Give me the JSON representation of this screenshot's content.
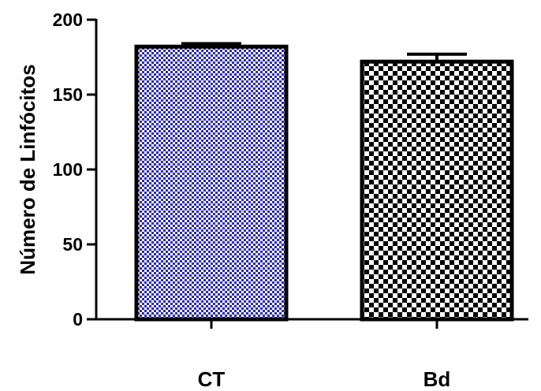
{
  "chart_data": {
    "type": "bar",
    "title": "",
    "xlabel": "",
    "ylabel": "Número de Linfócitos",
    "categories": [
      "CT",
      "Bd"
    ],
    "values": [
      182,
      172
    ],
    "errors": [
      2,
      5
    ],
    "ylim": [
      0,
      200
    ],
    "yticks": [
      0,
      50,
      100,
      150,
      200
    ],
    "yticklabels": [
      "0",
      "50",
      "100",
      "150",
      "200"
    ],
    "grid": false,
    "legend": "none",
    "bar_fills": [
      {
        "pattern": "fine-checker",
        "color_a": "#2b2bb3",
        "color_b": "#ffffff"
      },
      {
        "pattern": "coarse-checker",
        "color_a": "#000000",
        "color_b": "#ffffff"
      }
    ],
    "bar_stroke": "#000000"
  }
}
